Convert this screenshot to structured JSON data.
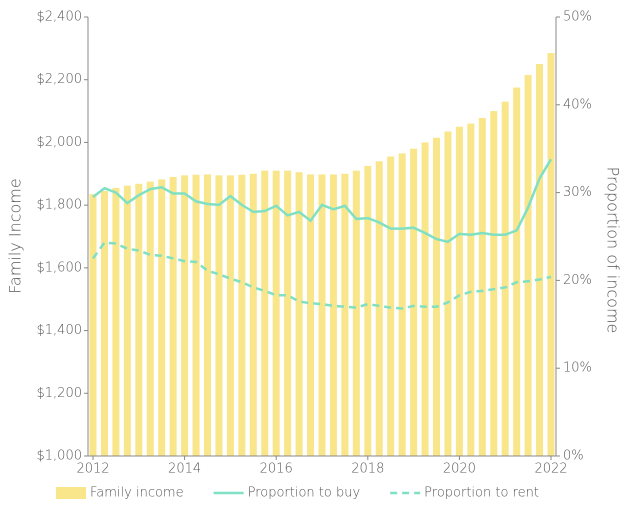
{
  "chart_data": {
    "type": "bar-line",
    "y_label": "Family Income",
    "y2_label": "Proportion of income",
    "x": [
      2012,
      2012.25,
      2012.5,
      2012.75,
      2013,
      2013.25,
      2013.5,
      2013.75,
      2014,
      2014.25,
      2014.5,
      2014.75,
      2015,
      2015.25,
      2015.5,
      2015.75,
      2016,
      2016.25,
      2016.5,
      2016.75,
      2017,
      2017.25,
      2017.5,
      2017.75,
      2018,
      2018.25,
      2018.5,
      2018.75,
      2019,
      2019.25,
      2019.5,
      2019.75,
      2020,
      2020.25,
      2020.5,
      2020.75,
      2021,
      2021.25,
      2021.5,
      2021.75,
      2022
    ],
    "series": [
      {
        "name": "Family income",
        "type": "bar",
        "color": "#f9e58a",
        "values": [
          1835,
          1845,
          1855,
          1862,
          1868,
          1875,
          1882,
          1890,
          1895,
          1897,
          1898,
          1895,
          1895,
          1897,
          1900,
          1910,
          1910,
          1910,
          1905,
          1898,
          1898,
          1898,
          1900,
          1910,
          1925,
          1940,
          1955,
          1965,
          1980,
          2000,
          2015,
          2035,
          2050,
          2060,
          2078,
          2100,
          2130,
          2175,
          2215,
          2250,
          2285
        ],
        "axis": "y"
      },
      {
        "name": "Proportion to buy",
        "type": "line",
        "color": "#7fe0c4",
        "dash": false,
        "axis": "y2",
        "values": [
          29.5,
          30.5,
          30,
          28.8,
          29.7,
          30.4,
          30.6,
          29.9,
          29.9,
          29,
          28.7,
          28.6,
          29.6,
          28.6,
          27.8,
          27.9,
          28.5,
          27.4,
          27.8,
          26.8,
          28.6,
          28.1,
          28.5,
          27,
          27.1,
          26.6,
          25.9,
          25.9,
          26,
          25.4,
          24.7,
          24.4,
          25.3,
          25.2,
          25.4,
          25.2,
          25.2,
          25.7,
          28.3,
          31.6,
          33.8
        ]
      },
      {
        "name": "Proportion to rent",
        "type": "line",
        "color": "#7fe0c4",
        "dash": true,
        "axis": "y2",
        "values": [
          22.5,
          24.3,
          24.2,
          23.6,
          23.4,
          22.9,
          22.8,
          22.5,
          22.2,
          22.1,
          21.1,
          20.7,
          20.2,
          19.8,
          19.2,
          18.8,
          18.3,
          18.3,
          17.6,
          17.4,
          17.3,
          17.1,
          17.0,
          16.9,
          17.3,
          17.1,
          16.9,
          16.8,
          17.1,
          17.0,
          17.0,
          17.5,
          18.3,
          18.7,
          18.8,
          19.0,
          19.2,
          19.8,
          19.9,
          20.1,
          20.4
        ]
      }
    ],
    "xlim": [
      2012,
      2022
    ],
    "xticks": [
      2012,
      2014,
      2016,
      2018,
      2020,
      2022
    ],
    "ylim": [
      1000,
      2400
    ],
    "yticks": [
      {
        "value": 1000,
        "label": "$1,000"
      },
      {
        "value": 1200,
        "label": "$1,200"
      },
      {
        "value": 1400,
        "label": "$1,400"
      },
      {
        "value": 1600,
        "label": "$1,600"
      },
      {
        "value": 1800,
        "label": "$1,800"
      },
      {
        "value": 2000,
        "label": "$2,000"
      },
      {
        "value": 2200,
        "label": "$2,200"
      },
      {
        "value": 2400,
        "label": "$2,400"
      }
    ],
    "y2lim": [
      0,
      50
    ],
    "y2ticks": [
      {
        "value": 0,
        "label": "0%"
      },
      {
        "value": 10,
        "label": "10%"
      },
      {
        "value": 20,
        "label": "20%"
      },
      {
        "value": 30,
        "label": "30%"
      },
      {
        "value": 40,
        "label": "40%"
      },
      {
        "value": 50,
        "label": "50%"
      }
    ],
    "legend": "bottom"
  }
}
